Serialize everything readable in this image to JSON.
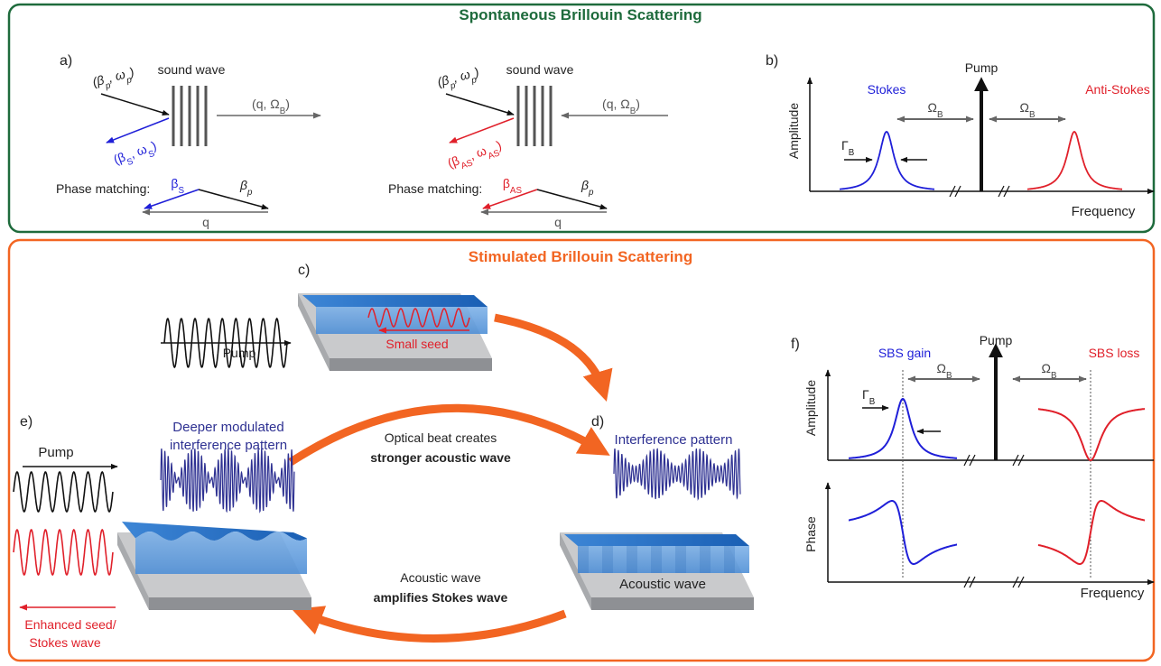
{
  "top_panel": {
    "title": "Spontaneous Brillouin Scattering",
    "a": {
      "label": "a)",
      "stokes": {
        "sound_wave": "sound wave",
        "incident": [
          "(β",
          "p",
          ", ω",
          "p",
          ")"
        ],
        "acoustic": [
          "(q, Ω",
          "B",
          ")"
        ],
        "scattered": [
          "(β",
          "S",
          ", ω",
          "S",
          ")"
        ],
        "phase_matching": "Phase matching:",
        "beta_scattered": [
          "β",
          "S"
        ],
        "beta_pump": [
          "β",
          "p"
        ],
        "q": "q"
      },
      "anti_stokes": {
        "sound_wave": "sound wave",
        "incident": [
          "(β",
          "p",
          ", ω",
          "p",
          ")"
        ],
        "acoustic": [
          "(q, Ω",
          "B",
          ")"
        ],
        "scattered": [
          "(β",
          "AS",
          ", ω",
          "AS",
          ")"
        ],
        "phase_matching": "Phase matching:",
        "beta_scattered": [
          "β",
          "AS"
        ],
        "beta_pump": [
          "β",
          "p"
        ],
        "q": "q"
      }
    },
    "b": {
      "label": "b)",
      "pump": "Pump",
      "stokes": "Stokes",
      "anti_stokes": "Anti-Stokes",
      "y_axis": "Amplitude",
      "x_axis": "Frequency",
      "shift_left": [
        "Ω",
        "B"
      ],
      "shift_right": [
        "Ω",
        "B"
      ],
      "linewidth": [
        "Γ",
        "B"
      ]
    }
  },
  "bottom_panel": {
    "title": "Stimulated Brillouin Scattering",
    "c": {
      "label": "c)",
      "pump": "Pump",
      "seed": "Small seed"
    },
    "d": {
      "label": "d)",
      "pattern": "Interference pattern",
      "acoustic": "Acoustic wave"
    },
    "e": {
      "label": "e)",
      "pattern": [
        "Deeper modulated",
        "interference pattern"
      ],
      "pump": "Pump",
      "seed": [
        "Enhanced seed/",
        "Stokes wave"
      ]
    },
    "arrows": {
      "top": [
        "Optical beat creates",
        "stronger acoustic wave"
      ],
      "bottom": [
        "Acoustic wave",
        "amplifies Stokes wave"
      ]
    },
    "f": {
      "label": "f)",
      "gain": "SBS gain",
      "pump": "Pump",
      "loss": "SBS loss",
      "y_axis_top": "Amplitude",
      "y_axis_bottom": "Phase",
      "x_axis": "Frequency",
      "shift_left": [
        "Ω",
        "B"
      ],
      "shift_right": [
        "Ω",
        "B"
      ],
      "linewidth": [
        "Γ",
        "B"
      ]
    }
  }
}
